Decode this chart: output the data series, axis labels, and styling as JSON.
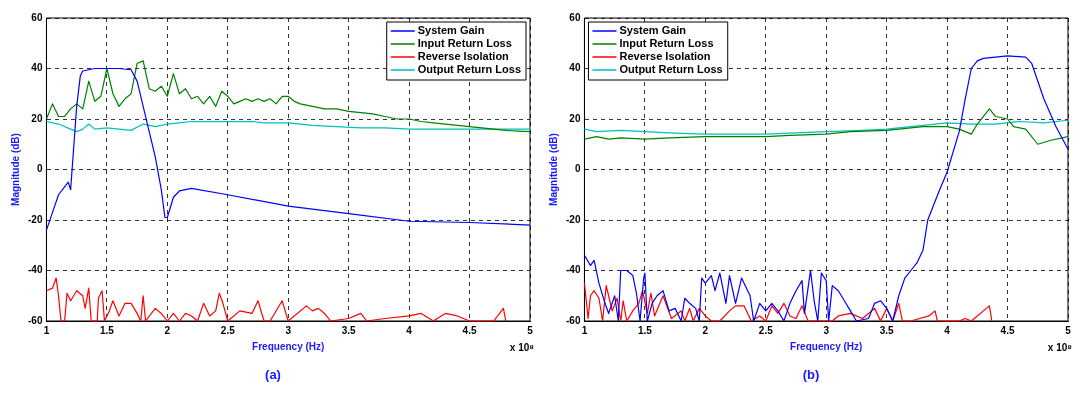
{
  "chart_data": [
    {
      "type": "line",
      "title": "(a)",
      "xlabel": "Frequency (Hz)",
      "ylabel": "Magnitude (dB)",
      "xlim": [
        1,
        5
      ],
      "ylim": [
        -60,
        60
      ],
      "xticks": [
        1,
        1.5,
        2,
        2.5,
        3,
        3.5,
        4,
        4.5,
        5
      ],
      "yticks": [
        -60,
        -40,
        -20,
        0,
        20,
        40,
        60
      ],
      "grid": true,
      "legend": "top right",
      "annotations": [
        "x 10⁸"
      ],
      "series": [
        {
          "name": "System Gain",
          "color": "#0000ff",
          "x": [
            1,
            1.05,
            1.1,
            1.18,
            1.2,
            1.25,
            1.28,
            1.3,
            1.4,
            1.5,
            1.6,
            1.7,
            1.75,
            1.8,
            1.85,
            1.9,
            1.95,
            1.98,
            2,
            2.05,
            2.1,
            2.2,
            2.5,
            3,
            3.5,
            4,
            4.5,
            5
          ],
          "values": [
            -24,
            -17,
            -10,
            -5,
            -8,
            25,
            37,
            39,
            40,
            40,
            40,
            39.5,
            35,
            25,
            15,
            5,
            -8,
            -19,
            -19,
            -11,
            -8.5,
            -7.5,
            -10,
            -14.5,
            -17.5,
            -20.5,
            -21,
            -22
          ]
        },
        {
          "name": "Input Return Loss",
          "color": "#008000",
          "x": [
            1,
            1.05,
            1.1,
            1.15,
            1.2,
            1.25,
            1.3,
            1.35,
            1.4,
            1.45,
            1.5,
            1.55,
            1.6,
            1.65,
            1.7,
            1.75,
            1.8,
            1.85,
            1.9,
            1.95,
            2,
            2.05,
            2.1,
            2.15,
            2.2,
            2.25,
            2.3,
            2.35,
            2.4,
            2.45,
            2.5,
            2.55,
            2.6,
            2.65,
            2.7,
            2.75,
            2.8,
            2.85,
            2.9,
            2.95,
            3,
            3.05,
            3.1,
            3.2,
            3.3,
            3.4,
            3.5,
            3.6,
            3.7,
            3.8,
            3.9,
            4,
            4.1,
            4.2,
            4.3,
            4.4,
            4.5,
            4.6,
            4.7,
            4.8,
            4.9,
            5
          ],
          "values": [
            20,
            26,
            21,
            21,
            24,
            26,
            24,
            35,
            27,
            29,
            40,
            30,
            25,
            28,
            30,
            42,
            43,
            32,
            31,
            33,
            29,
            38,
            30,
            32,
            28,
            29,
            26,
            29,
            25,
            31,
            29,
            26,
            27,
            28,
            27,
            28,
            27,
            28,
            26,
            29,
            29,
            27,
            26,
            25,
            24,
            24,
            23,
            22.5,
            22,
            21,
            20,
            20,
            19,
            18.5,
            18,
            17.5,
            17,
            16.5,
            16,
            15.5,
            15.2,
            15
          ]
        },
        {
          "name": "Reverse Isolation",
          "color": "#ff0000",
          "x": [
            1,
            1.05,
            1.08,
            1.1,
            1.12,
            1.15,
            1.17,
            1.2,
            1.25,
            1.3,
            1.32,
            1.35,
            1.37,
            1.42,
            1.43,
            1.46,
            1.48,
            1.52,
            1.55,
            1.6,
            1.65,
            1.7,
            1.75,
            1.78,
            1.8,
            1.82,
            1.9,
            1.95,
            2,
            2.05,
            2.1,
            2.15,
            2.2,
            2.25,
            2.3,
            2.35,
            2.4,
            2.43,
            2.46,
            2.5,
            2.6,
            2.7,
            2.75,
            2.8,
            2.85,
            2.95,
            3,
            3.15,
            3.2,
            3.25,
            3.3,
            3.35,
            3.5,
            3.6,
            3.65,
            3.8,
            4,
            4.1,
            4.2,
            4.3,
            4.4,
            4.5,
            4.7,
            4.78,
            4.8
          ],
          "values": [
            -48,
            -47,
            -43,
            -50,
            -60,
            -60,
            -49,
            -52,
            -48,
            -50,
            -55,
            -47,
            -60,
            -60,
            -51,
            -48,
            -60,
            -56,
            -52,
            -58,
            -53,
            -53,
            -57,
            -60,
            -50,
            -60,
            -55,
            -57,
            -60,
            -57,
            -60,
            -57,
            -58,
            -60,
            -53,
            -58,
            -56,
            -49,
            -53,
            -60,
            -56,
            -57,
            -52,
            -60,
            -60,
            -52,
            -60,
            -54,
            -56,
            -55,
            -57,
            -60,
            -59,
            -57,
            -60,
            -59,
            -58,
            -57,
            -60,
            -57,
            -58,
            -60,
            -60,
            -55,
            -60
          ]
        },
        {
          "name": "Output Return Loss",
          "color": "#00bfbf",
          "x": [
            1,
            1.1,
            1.2,
            1.25,
            1.3,
            1.35,
            1.4,
            1.5,
            1.6,
            1.7,
            1.8,
            1.9,
            2,
            2.1,
            2.2,
            2.3,
            2.4,
            2.5,
            2.6,
            2.7,
            2.8,
            2.9,
            3,
            3.2,
            3.4,
            3.6,
            3.8,
            4,
            4.2,
            4.4,
            4.6,
            4.8,
            5
          ],
          "values": [
            19,
            18,
            16,
            15,
            16,
            18,
            16,
            16.5,
            16,
            15.5,
            18,
            17,
            18,
            18.5,
            19,
            19,
            19,
            19,
            19,
            19,
            18.5,
            18.5,
            18.5,
            17.5,
            17,
            16.5,
            16.5,
            16,
            16,
            16,
            16,
            16,
            16
          ]
        }
      ]
    },
    {
      "type": "line",
      "title": "(b)",
      "xlabel": "Frequency (Hz)",
      "ylabel": "Magnitude (dB)",
      "xlim": [
        1,
        5
      ],
      "ylim": [
        -60,
        60
      ],
      "xticks": [
        1,
        1.5,
        2,
        2.5,
        3,
        3.5,
        4,
        4.5,
        5
      ],
      "yticks": [
        -60,
        -40,
        -20,
        0,
        20,
        40,
        60
      ],
      "grid": true,
      "legend": "top left",
      "annotations": [
        "x 10⁸"
      ],
      "series": [
        {
          "name": "System Gain",
          "color": "#0000ff",
          "x": [
            1,
            1.05,
            1.08,
            1.12,
            1.17,
            1.2,
            1.25,
            1.28,
            1.3,
            1.35,
            1.4,
            1.43,
            1.46,
            1.49,
            1.5,
            1.52,
            1.56,
            1.6,
            1.65,
            1.7,
            1.75,
            1.8,
            1.83,
            1.87,
            1.92,
            1.95,
            1.97,
            2,
            2.05,
            2.08,
            2.12,
            2.17,
            2.2,
            2.25,
            2.3,
            2.37,
            2.4,
            2.45,
            2.5,
            2.55,
            2.6,
            2.65,
            2.7,
            2.75,
            2.8,
            2.82,
            2.87,
            2.9,
            2.93,
            2.96,
            3,
            3.02,
            3.05,
            3.1,
            3.15,
            3.2,
            3.25,
            3.35,
            3.4,
            3.45,
            3.5,
            3.55,
            3.6,
            3.65,
            3.7,
            3.75,
            3.8,
            3.84,
            3.93,
            4,
            4.1,
            4.15,
            4.2,
            4.25,
            4.3,
            4.5,
            4.65,
            4.7,
            4.8,
            4.9,
            5
          ],
          "values": [
            -34,
            -38,
            -36,
            -45,
            -53,
            -57,
            -50,
            -60,
            -40,
            -40,
            -42,
            -49,
            -60,
            -43,
            -41,
            -60,
            -53,
            -50,
            -48,
            -56,
            -55,
            -60,
            -51,
            -53,
            -55,
            -60,
            -43,
            -45,
            -42,
            -48,
            -41,
            -53,
            -42,
            -53,
            -43,
            -50,
            -60,
            -53,
            -56,
            -53,
            -56,
            -60,
            -53,
            -48,
            -44,
            -57,
            -40,
            -52,
            -60,
            -41,
            -44,
            -60,
            -46,
            -48,
            -52,
            -56,
            -60,
            -59,
            -53,
            -52,
            -55,
            -60,
            -50,
            -43,
            -40,
            -37,
            -32,
            -20,
            -9,
            -1,
            15,
            28,
            40,
            43,
            44,
            45,
            44.5,
            42,
            28,
            17,
            8
          ]
        },
        {
          "name": "Input Return Loss",
          "color": "#008000",
          "x": [
            1,
            1.1,
            1.2,
            1.3,
            1.5,
            1.7,
            2,
            2.3,
            2.5,
            2.7,
            3,
            3.2,
            3.5,
            3.8,
            4,
            4.1,
            4.2,
            4.25,
            4.35,
            4.4,
            4.5,
            4.55,
            4.65,
            4.75,
            4.85,
            5
          ],
          "values": [
            12,
            13,
            12,
            12.5,
            12,
            12.5,
            13,
            13,
            13,
            13.5,
            14,
            15,
            15.5,
            17,
            17,
            16,
            14,
            18,
            24,
            21,
            20,
            17,
            16,
            10,
            11.5,
            13
          ]
        },
        {
          "name": "Reverse Isolation",
          "color": "#ff0000",
          "x": [
            1,
            1.03,
            1.05,
            1.08,
            1.12,
            1.15,
            1.18,
            1.2,
            1.23,
            1.27,
            1.3,
            1.32,
            1.35,
            1.4,
            1.45,
            1.48,
            1.52,
            1.55,
            1.58,
            1.65,
            1.72,
            1.8,
            1.83,
            1.87,
            1.9,
            1.95,
            2,
            2.05,
            2.12,
            2.2,
            2.25,
            2.32,
            2.38,
            2.45,
            2.5,
            2.55,
            2.6,
            2.65,
            2.7,
            2.75,
            2.8,
            2.85,
            2.92,
            3.05,
            3.1,
            3.2,
            3.3,
            3.4,
            3.45,
            3.5,
            3.55,
            3.6,
            3.63,
            3.7,
            3.85,
            3.9,
            3.92,
            4.1,
            4.15,
            4.2,
            4.35,
            4.37
          ],
          "values": [
            -45,
            -59,
            -50,
            -48,
            -51,
            -60,
            -46,
            -50,
            -56,
            -51,
            -60,
            -52,
            -60,
            -56,
            -53,
            -48,
            -57,
            -49,
            -58,
            -50,
            -59,
            -56,
            -60,
            -55,
            -60,
            -55,
            -58,
            -60,
            -60,
            -56,
            -54,
            -54,
            -60,
            -58,
            -60,
            -54,
            -57,
            -53,
            -58,
            -59,
            -54,
            -60,
            -60,
            -60,
            -58,
            -57,
            -59,
            -55,
            -60,
            -55,
            -60,
            -53,
            -60,
            -60,
            -58,
            -56,
            -60,
            -60,
            -59,
            -60,
            -54,
            -60
          ]
        },
        {
          "name": "Output Return Loss",
          "color": "#00bfbf",
          "x": [
            1,
            1.1,
            1.3,
            1.5,
            1.7,
            2,
            2.5,
            3,
            3.3,
            3.5,
            3.7,
            3.9,
            4,
            4.2,
            4.4,
            4.6,
            4.8,
            5
          ],
          "values": [
            16,
            15,
            15.5,
            15,
            14.5,
            14,
            14,
            15,
            15.5,
            16,
            17,
            18,
            18.5,
            18,
            18,
            19,
            18.5,
            19.5
          ]
        }
      ]
    }
  ]
}
